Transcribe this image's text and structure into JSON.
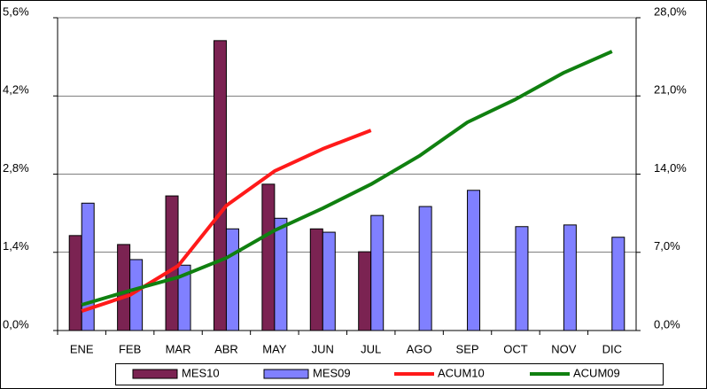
{
  "chart_data": {
    "type": "bar",
    "categories": [
      "ENE",
      "FEB",
      "MAR",
      "ABR",
      "MAY",
      "JUN",
      "JUL",
      "AGO",
      "SEP",
      "OCT",
      "NOV",
      "DIC"
    ],
    "series": [
      {
        "name": "MES10",
        "type": "bar",
        "color": "#7b2352",
        "values": [
          1.7,
          1.54,
          2.41,
          5.19,
          2.62,
          1.82,
          1.41,
          null,
          null,
          null,
          null,
          null
        ]
      },
      {
        "name": "MES09",
        "type": "bar",
        "color": "#8080ff",
        "values": [
          2.28,
          1.27,
          1.17,
          1.82,
          2.01,
          1.76,
          2.06,
          2.22,
          2.51,
          1.86,
          1.89,
          1.67
        ]
      },
      {
        "name": "ACUM10",
        "type": "line",
        "axis": "y2",
        "color": "#ff1a1a",
        "values": [
          1.74,
          3.17,
          5.79,
          11.18,
          14.27,
          16.26,
          17.92,
          null,
          null,
          null,
          null,
          null
        ]
      },
      {
        "name": "ACUM09",
        "type": "line",
        "axis": "y2",
        "color": "#108010",
        "values": [
          2.3,
          3.57,
          4.76,
          6.5,
          8.96,
          10.94,
          13.09,
          15.62,
          18.64,
          20.7,
          23.08,
          24.98
        ]
      }
    ],
    "ylim": [
      0,
      5.6
    ],
    "yticks": [
      {
        "value": 0,
        "label": "0,0%"
      },
      {
        "value": 1.4,
        "label": "1,4%"
      },
      {
        "value": 2.8,
        "label": "2,8%"
      },
      {
        "value": 4.2,
        "label": "4,2%"
      },
      {
        "value": 5.6,
        "label": "5,6%"
      }
    ],
    "y2lim": [
      0,
      28
    ],
    "y2ticks": [
      {
        "value": 0,
        "label": "0,0%"
      },
      {
        "value": 7,
        "label": "7,0%"
      },
      {
        "value": 14,
        "label": "14,0%"
      },
      {
        "value": 21,
        "label": "21,0%"
      },
      {
        "value": 28,
        "label": "28,0%"
      }
    ],
    "grid": true
  }
}
